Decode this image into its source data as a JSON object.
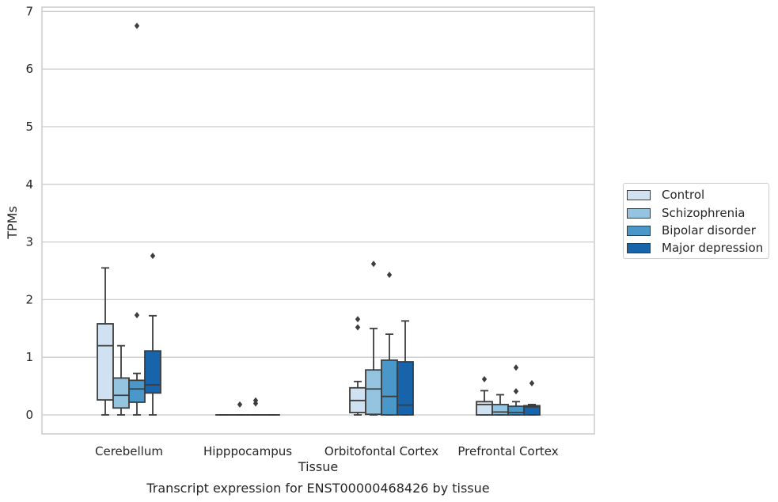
{
  "chart_data": {
    "type": "box",
    "title": "Transcript expression for ENST00000468426 by tissue",
    "xlabel": "Tissue",
    "ylabel": "TPMs",
    "ylim": [
      -0.32,
      7.1
    ],
    "yticks": [
      0,
      1,
      2,
      3,
      4,
      5,
      6,
      7
    ],
    "grid": true,
    "legend_position": "right",
    "categories": [
      "Cerebellum",
      "Hipppocampus",
      "Orbitofontal Cortex",
      "Prefrontal Cortex"
    ],
    "series": [
      {
        "name": "Control",
        "color": "#d0e1f2",
        "boxes": [
          {
            "whisker_low": 0,
            "q1": 0.26,
            "median": 1.2,
            "q3": 1.58,
            "whisker_high": 2.55,
            "outliers": []
          },
          {
            "whisker_low": 0,
            "q1": 0,
            "median": 0,
            "q3": 0,
            "whisker_high": 0,
            "outliers": []
          },
          {
            "whisker_low": 0,
            "q1": 0.04,
            "median": 0.25,
            "q3": 0.47,
            "whisker_high": 0.58,
            "outliers": [
              1.52,
              1.66
            ]
          },
          {
            "whisker_low": 0,
            "q1": 0,
            "median": 0.18,
            "q3": 0.23,
            "whisker_high": 0.42,
            "outliers": [
              0.62
            ]
          }
        ]
      },
      {
        "name": "Schizophrenia",
        "color": "#94c4df",
        "boxes": [
          {
            "whisker_low": 0,
            "q1": 0.12,
            "median": 0.34,
            "q3": 0.64,
            "whisker_high": 1.2,
            "outliers": []
          },
          {
            "whisker_low": 0,
            "q1": 0,
            "median": 0,
            "q3": 0,
            "whisker_high": 0,
            "outliers": [
              0.18
            ]
          },
          {
            "whisker_low": 0,
            "q1": 0.01,
            "median": 0.45,
            "q3": 0.78,
            "whisker_high": 1.5,
            "outliers": [
              2.62
            ]
          },
          {
            "whisker_low": 0,
            "q1": 0,
            "median": 0.05,
            "q3": 0.18,
            "whisker_high": 0.35,
            "outliers": []
          }
        ]
      },
      {
        "name": "Bipolar disorder",
        "color": "#4a98c9",
        "boxes": [
          {
            "whisker_low": 0,
            "q1": 0.22,
            "median": 0.45,
            "q3": 0.6,
            "whisker_high": 0.72,
            "outliers": [
              1.73,
              6.75
            ]
          },
          {
            "whisker_low": 0,
            "q1": 0,
            "median": 0,
            "q3": 0,
            "whisker_high": 0,
            "outliers": [
              0.2,
              0.25
            ]
          },
          {
            "whisker_low": 0,
            "q1": 0,
            "median": 0.32,
            "q3": 0.95,
            "whisker_high": 1.4,
            "outliers": [
              2.43
            ]
          },
          {
            "whisker_low": 0,
            "q1": 0,
            "median": 0.04,
            "q3": 0.15,
            "whisker_high": 0.23,
            "outliers": [
              0.41,
              0.82
            ]
          }
        ]
      },
      {
        "name": "Major depression",
        "color": "#1764ab",
        "boxes": [
          {
            "whisker_low": 0,
            "q1": 0.38,
            "median": 0.52,
            "q3": 1.11,
            "whisker_high": 1.72,
            "outliers": [
              2.76
            ]
          },
          {
            "whisker_low": 0,
            "q1": 0,
            "median": 0,
            "q3": 0,
            "whisker_high": 0,
            "outliers": []
          },
          {
            "whisker_low": 0,
            "q1": 0,
            "median": 0.17,
            "q3": 0.92,
            "whisker_high": 1.63,
            "outliers": []
          },
          {
            "whisker_low": 0,
            "q1": 0,
            "median": 0.14,
            "q3": 0.16,
            "whisker_high": 0.18,
            "outliers": [
              0.55
            ]
          }
        ]
      }
    ]
  }
}
